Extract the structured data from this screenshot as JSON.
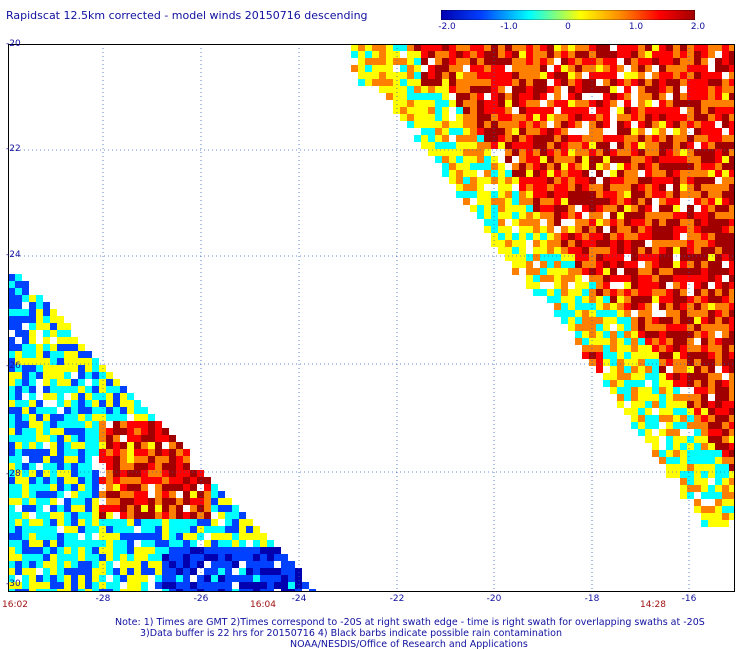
{
  "title": "Rapidscat 12.5km corrected - model winds 20150716 descending",
  "colorbar": {
    "labels": [
      "-2.0",
      "-1.0",
      "0",
      "1.0",
      "2.0"
    ],
    "colors": [
      "#0000b0",
      "#0040ff",
      "#00ffff",
      "#ffff00",
      "#ff8000",
      "#ff0000",
      "#a00000"
    ]
  },
  "axes": {
    "y_labels": [
      "-20",
      "-22",
      "-24",
      "-26",
      "-28",
      "-30"
    ],
    "x_labels": [
      "-28",
      "-26",
      "-24",
      "-22",
      "-20",
      "-18",
      "-16"
    ],
    "lon_range": [
      -30,
      -15.1
    ],
    "lat_range": [
      -30,
      -20
    ]
  },
  "times": {
    "left": "16:02",
    "mid": "16:04",
    "right": "14:28"
  },
  "notes": {
    "line1": "Note: 1) Times are GMT 2)Times correspond to -20S at right swath edge - time is right swath for overlapping swaths at -20S",
    "line2": "3)Data buffer is 22 hrs for 20150716 4) Black barbs indicate possible rain contamination",
    "line3": "NOAA/NESDIS/Office of Research and Applications"
  }
}
